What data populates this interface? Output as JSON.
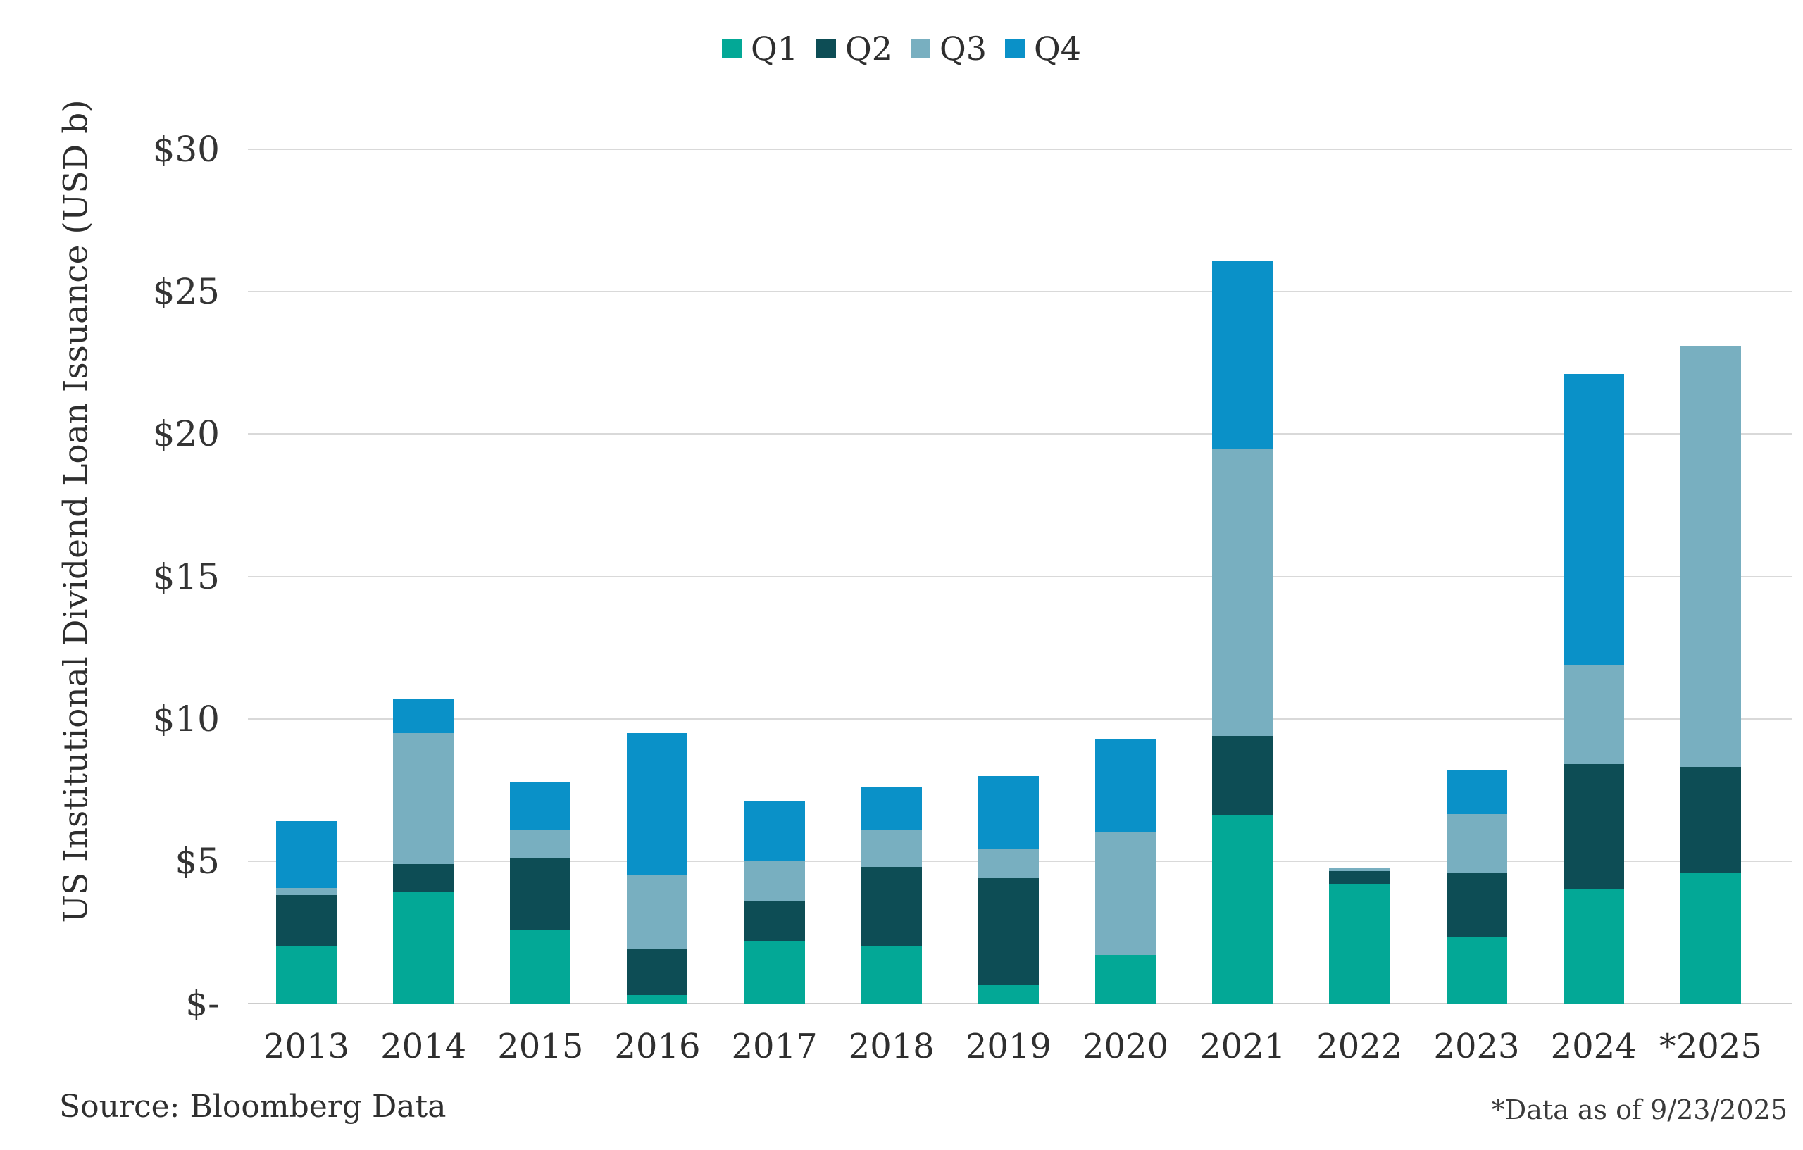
{
  "footer": {
    "source": "Source: Bloomberg Data",
    "note": "*Data as of 9/23/2025"
  },
  "axis": {
    "tick_labels": [
      "$-",
      "$5",
      "$10",
      "$15",
      "$20",
      "$25",
      "$30"
    ],
    "tick_values": [
      0,
      5,
      10,
      15,
      20,
      25,
      30
    ]
  },
  "chart_data": {
    "type": "bar",
    "stacked": true,
    "title": "",
    "xlabel": "",
    "ylabel": "US Institutional Dividend Loan Issuance (USD b)",
    "ylim": [
      0,
      30
    ],
    "grid": true,
    "legend_position": "top",
    "categories": [
      "2013",
      "2014",
      "2015",
      "2016",
      "2017",
      "2018",
      "2019",
      "2020",
      "2021",
      "2022",
      "2023",
      "2024",
      "*2025"
    ],
    "series": [
      {
        "name": "Q1",
        "color": "#03A896",
        "values": [
          2.0,
          3.9,
          2.6,
          0.3,
          2.2,
          2.0,
          0.65,
          1.7,
          6.6,
          4.2,
          2.35,
          4.0,
          4.6
        ]
      },
      {
        "name": "Q2",
        "color": "#0D4D55",
        "values": [
          1.8,
          1.0,
          2.5,
          1.6,
          1.4,
          2.8,
          3.75,
          0.0,
          2.8,
          0.45,
          2.25,
          4.4,
          3.7
        ]
      },
      {
        "name": "Q3",
        "color": "#78AFC0",
        "values": [
          0.25,
          4.6,
          1.0,
          2.6,
          1.4,
          1.3,
          1.05,
          4.3,
          10.1,
          0.1,
          2.05,
          3.5,
          14.8
        ]
      },
      {
        "name": "Q4",
        "color": "#0A91C8",
        "values": [
          2.35,
          1.2,
          1.7,
          5.0,
          2.1,
          1.5,
          2.55,
          3.3,
          6.6,
          0.0,
          1.55,
          10.2,
          0.0
        ]
      }
    ],
    "totals": [
      6.4,
      10.7,
      7.8,
      9.5,
      7.1,
      7.6,
      8.0,
      9.3,
      26.1,
      4.75,
      8.2,
      22.1,
      23.1
    ]
  }
}
